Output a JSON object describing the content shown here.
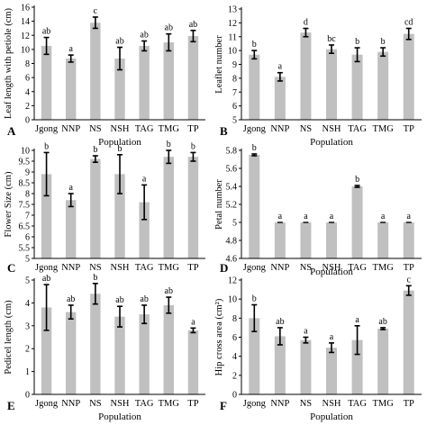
{
  "chart_data": [
    {
      "panel": "A",
      "type": "bar",
      "xlabel": "Population",
      "ylabel": "Leaf length with petiole (cm)",
      "categories": [
        "Jgong",
        "NNP",
        "NS",
        "NSH",
        "TAG",
        "TMG",
        "TP"
      ],
      "values": [
        10.5,
        8.7,
        13.8,
        8.7,
        10.5,
        11.0,
        11.9
      ],
      "errors": [
        1.2,
        0.5,
        0.8,
        1.6,
        0.7,
        1.2,
        0.8
      ],
      "letters": [
        "ab",
        "a",
        "c",
        "ab",
        "ab",
        "ab",
        "ab"
      ],
      "ylim": [
        0,
        16
      ],
      "ticks": [
        0,
        2,
        4,
        6,
        8,
        10,
        12,
        14,
        16
      ],
      "bar_color": "#c0c0c0"
    },
    {
      "panel": "B",
      "type": "bar",
      "xlabel": "Population",
      "ylabel": "Leaflet number",
      "categories": [
        "Jgong",
        "NNP",
        "NS",
        "NSH",
        "TAG",
        "TMG",
        "TP"
      ],
      "values": [
        9.7,
        8.1,
        11.3,
        10.1,
        9.7,
        9.9,
        11.2
      ],
      "errors": [
        0.3,
        0.3,
        0.3,
        0.3,
        0.5,
        0.3,
        0.4
      ],
      "letters": [
        "b",
        "a",
        "d",
        "bc",
        "b",
        "b",
        "cd"
      ],
      "ylim": [
        5,
        13
      ],
      "ticks": [
        5,
        6,
        7,
        8,
        9,
        10,
        11,
        12,
        13
      ],
      "bar_color": "#c0c0c0"
    },
    {
      "panel": "C",
      "type": "bar",
      "xlabel": "",
      "ylabel": "Flower Size (cm)",
      "categories": [
        "Jgong",
        "NNP",
        "NS",
        "NSH",
        "TAG",
        "TMG",
        "TP"
      ],
      "values": [
        8.9,
        7.7,
        9.6,
        8.9,
        7.6,
        9.7,
        9.7
      ],
      "errors": [
        1.0,
        0.3,
        0.15,
        0.9,
        0.8,
        0.3,
        0.2
      ],
      "letters": [
        "b",
        "a",
        "b",
        "b",
        "a",
        "b",
        "b"
      ],
      "ylim": [
        5,
        10
      ],
      "ticks": [
        5,
        5.5,
        6,
        6.5,
        7,
        7.5,
        8,
        8.5,
        9,
        9.5,
        10
      ],
      "bar_color": "#c0c0c0"
    },
    {
      "panel": "D",
      "type": "bar",
      "xlabel": "Population",
      "ylabel": "Petal number",
      "categories": [
        "Jgong",
        "NNP",
        "NS",
        "NSH",
        "TAG",
        "TMG",
        "TP"
      ],
      "values": [
        5.75,
        5.0,
        5.0,
        5.0,
        5.4,
        5.0,
        5.0
      ],
      "errors": [
        0.01,
        0.0,
        0.0,
        0.0,
        0.01,
        0.0,
        0.0
      ],
      "letters": [
        "b",
        "a",
        "a",
        "a",
        "b",
        "a",
        "a"
      ],
      "ylim": [
        4.6,
        5.8
      ],
      "ticks": [
        4.6,
        4.8,
        5,
        5.2,
        5.4,
        5.6,
        5.8
      ],
      "bar_color": "#c0c0c0"
    },
    {
      "panel": "E",
      "type": "bar",
      "xlabel": "Population",
      "ylabel": "Pedicel length (cm)",
      "categories": [
        "Jgong",
        "NNP",
        "NS",
        "NSH",
        "TAG",
        "TMG",
        "TP"
      ],
      "values": [
        3.8,
        3.6,
        4.4,
        3.4,
        3.5,
        3.9,
        2.8
      ],
      "errors": [
        1.0,
        0.3,
        0.45,
        0.45,
        0.4,
        0.35,
        0.1
      ],
      "letters": [
        "ab",
        "ab",
        "b",
        "ab",
        "ab",
        "ab",
        "a"
      ],
      "ylim": [
        0,
        5
      ],
      "ticks": [
        0,
        1,
        2,
        3,
        4,
        5
      ],
      "bar_color": "#c0c0c0"
    },
    {
      "panel": "F",
      "type": "bar",
      "xlabel": "Population",
      "ylabel": "Hip cross area (cm²)",
      "categories": [
        "Jgong",
        "NNP",
        "NS",
        "NSH",
        "TAG",
        "TMG",
        "TP"
      ],
      "values": [
        8.0,
        6.1,
        5.7,
        4.9,
        5.7,
        6.9,
        10.9
      ],
      "errors": [
        1.4,
        0.9,
        0.3,
        0.5,
        1.5,
        0.1,
        0.5
      ],
      "letters": [
        "b",
        "ab",
        "a",
        "a",
        "a",
        "ab",
        "c"
      ],
      "ylim": [
        0,
        12
      ],
      "ticks": [
        0,
        2,
        4,
        6,
        8,
        10,
        12
      ],
      "bar_color": "#c0c0c0"
    }
  ]
}
